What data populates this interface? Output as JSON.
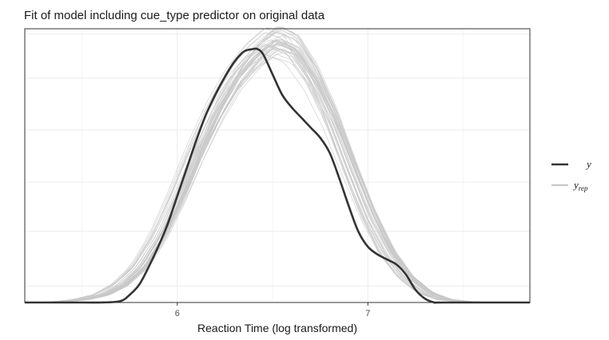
{
  "chart_data": {
    "type": "line",
    "title": "Fit of model including cue_type predictor on original data",
    "xlabel": "Reaction Time (log transformed)",
    "ylabel": "",
    "xlim": [
      5.2,
      7.85
    ],
    "ylim": [
      0,
      1.08
    ],
    "x_ticks": [
      6,
      7
    ],
    "x_tick_labels": [
      "6",
      "7"
    ],
    "grid": true,
    "legend_position": "right",
    "legend": [
      {
        "label": "y",
        "subscript": "",
        "color": "#333333",
        "width": 2.6
      },
      {
        "label": "y",
        "subscript": "rep",
        "color": "#c8c8c8",
        "width": 2.2
      }
    ],
    "series": [
      {
        "name": "y",
        "color": "#333333",
        "x": [
          5.5,
          5.6,
          5.7,
          5.75,
          5.8,
          5.85,
          5.9,
          5.95,
          6.0,
          6.05,
          6.1,
          6.15,
          6.2,
          6.25,
          6.3,
          6.35,
          6.4,
          6.42,
          6.45,
          6.5,
          6.55,
          6.6,
          6.65,
          6.7,
          6.75,
          6.8,
          6.85,
          6.9,
          6.95,
          7.0,
          7.05,
          7.1,
          7.15,
          7.2,
          7.25,
          7.3,
          7.35,
          7.4
        ],
        "values": [
          0.0,
          0.0,
          0.005,
          0.03,
          0.07,
          0.14,
          0.22,
          0.31,
          0.42,
          0.53,
          0.64,
          0.74,
          0.82,
          0.89,
          0.95,
          0.99,
          1.0,
          1.0,
          0.98,
          0.9,
          0.82,
          0.77,
          0.73,
          0.69,
          0.65,
          0.59,
          0.49,
          0.38,
          0.28,
          0.22,
          0.19,
          0.17,
          0.15,
          0.11,
          0.05,
          0.015,
          0.0,
          0.0
        ]
      },
      {
        "name": "y_rep",
        "color": "#c8c8c8",
        "draws": 40,
        "x": [
          5.3,
          5.4,
          5.5,
          5.6,
          5.7,
          5.8,
          5.9,
          6.0,
          6.1,
          6.2,
          6.3,
          6.4,
          6.5,
          6.6,
          6.7,
          6.8,
          6.9,
          7.0,
          7.1,
          7.2,
          7.3,
          7.4,
          7.5,
          7.6,
          7.7
        ],
        "values": [
          0.0,
          0.004,
          0.012,
          0.03,
          0.07,
          0.14,
          0.26,
          0.42,
          0.6,
          0.76,
          0.89,
          0.98,
          1.04,
          1.01,
          0.9,
          0.74,
          0.54,
          0.35,
          0.2,
          0.1,
          0.04,
          0.012,
          0.004,
          0.0,
          0.0
        ]
      }
    ]
  }
}
